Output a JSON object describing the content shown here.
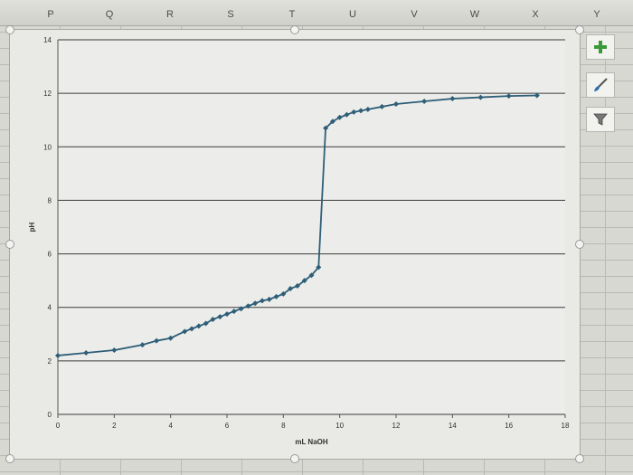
{
  "spreadsheet": {
    "column_letters": [
      "P",
      "Q",
      "R",
      "S",
      "T",
      "U",
      "V",
      "W",
      "X",
      "Y"
    ]
  },
  "chart_tools": {
    "icons": [
      "plus-icon",
      "paintbrush-icon",
      "filter-icon"
    ]
  },
  "chart_data": {
    "type": "line",
    "title": "",
    "xlabel": "mL NaOH",
    "ylabel": "pH",
    "xlim": [
      0,
      18
    ],
    "ylim": [
      0,
      14
    ],
    "x_ticks": [
      0,
      2,
      4,
      6,
      8,
      10,
      12,
      14,
      16,
      18
    ],
    "y_ticks": [
      0,
      2,
      4,
      6,
      8,
      10,
      12,
      14
    ],
    "grid": "horizontal",
    "legend": "none",
    "line_color": "#2e5e78",
    "series": [
      {
        "x": [
          0,
          1,
          2,
          3,
          3.5,
          4,
          4.5,
          4.75,
          5,
          5.25,
          5.5,
          5.75,
          6,
          6.25,
          6.5,
          6.75,
          7,
          7.25,
          7.5,
          7.75,
          8,
          8.25,
          8.5,
          8.75,
          9,
          9.25,
          9.5,
          9.75,
          10,
          10.25,
          10.5,
          10.75,
          11,
          11.5,
          12,
          13,
          14,
          15,
          16,
          17
        ],
        "y": [
          2.2,
          2.3,
          2.4,
          2.6,
          2.75,
          2.85,
          3.1,
          3.2,
          3.3,
          3.4,
          3.55,
          3.65,
          3.75,
          3.85,
          3.95,
          4.05,
          4.15,
          4.25,
          4.3,
          4.4,
          4.5,
          4.7,
          4.8,
          5.0,
          5.2,
          5.5,
          10.7,
          10.95,
          11.1,
          11.2,
          11.3,
          11.35,
          11.4,
          11.5,
          11.6,
          11.7,
          11.8,
          11.85,
          11.9,
          11.92
        ]
      }
    ]
  }
}
